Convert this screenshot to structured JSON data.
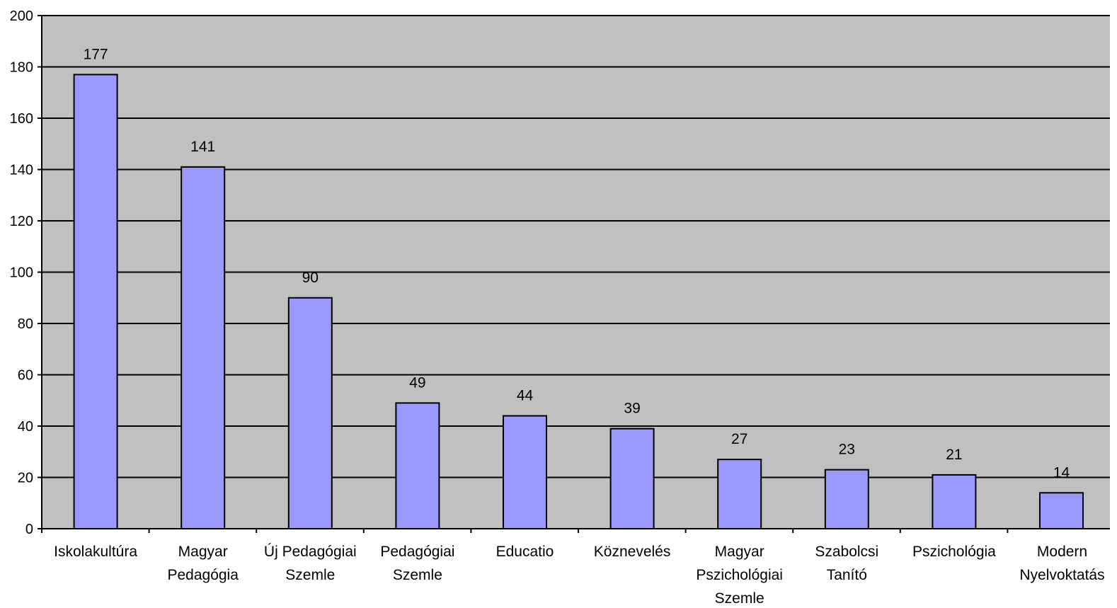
{
  "chart_data": {
    "type": "bar",
    "categories": [
      [
        "Iskolakultúra"
      ],
      [
        "Magyar",
        "Pedagógia"
      ],
      [
        "Új Pedagógiai",
        "Szemle"
      ],
      [
        "Pedagógiai",
        "Szemle"
      ],
      [
        "Educatio"
      ],
      [
        "Köznevelés"
      ],
      [
        "Magyar",
        "Pszichológiai",
        "Szemle"
      ],
      [
        "Szabolcsi",
        "Tanító"
      ],
      [
        "Pszichológia"
      ],
      [
        "Modern",
        "Nyelvoktatás"
      ]
    ],
    "values": [
      177,
      141,
      90,
      49,
      44,
      39,
      27,
      23,
      21,
      14
    ],
    "data_labels": [
      "177",
      "141",
      "90",
      "49",
      "44",
      "39",
      "27",
      "23",
      "21",
      "14"
    ],
    "y_ticks": [
      "0",
      "20",
      "40",
      "60",
      "80",
      "100",
      "120",
      "140",
      "160",
      "180",
      "200"
    ],
    "ylim": [
      0,
      200
    ],
    "title": "",
    "xlabel": "",
    "ylabel": "",
    "grid": true,
    "legend": "none",
    "colors": {
      "bar_fill": "#9999ff",
      "bar_stroke": "#000000",
      "plot_background": "#c0c0c0",
      "gridline": "#000000"
    }
  }
}
